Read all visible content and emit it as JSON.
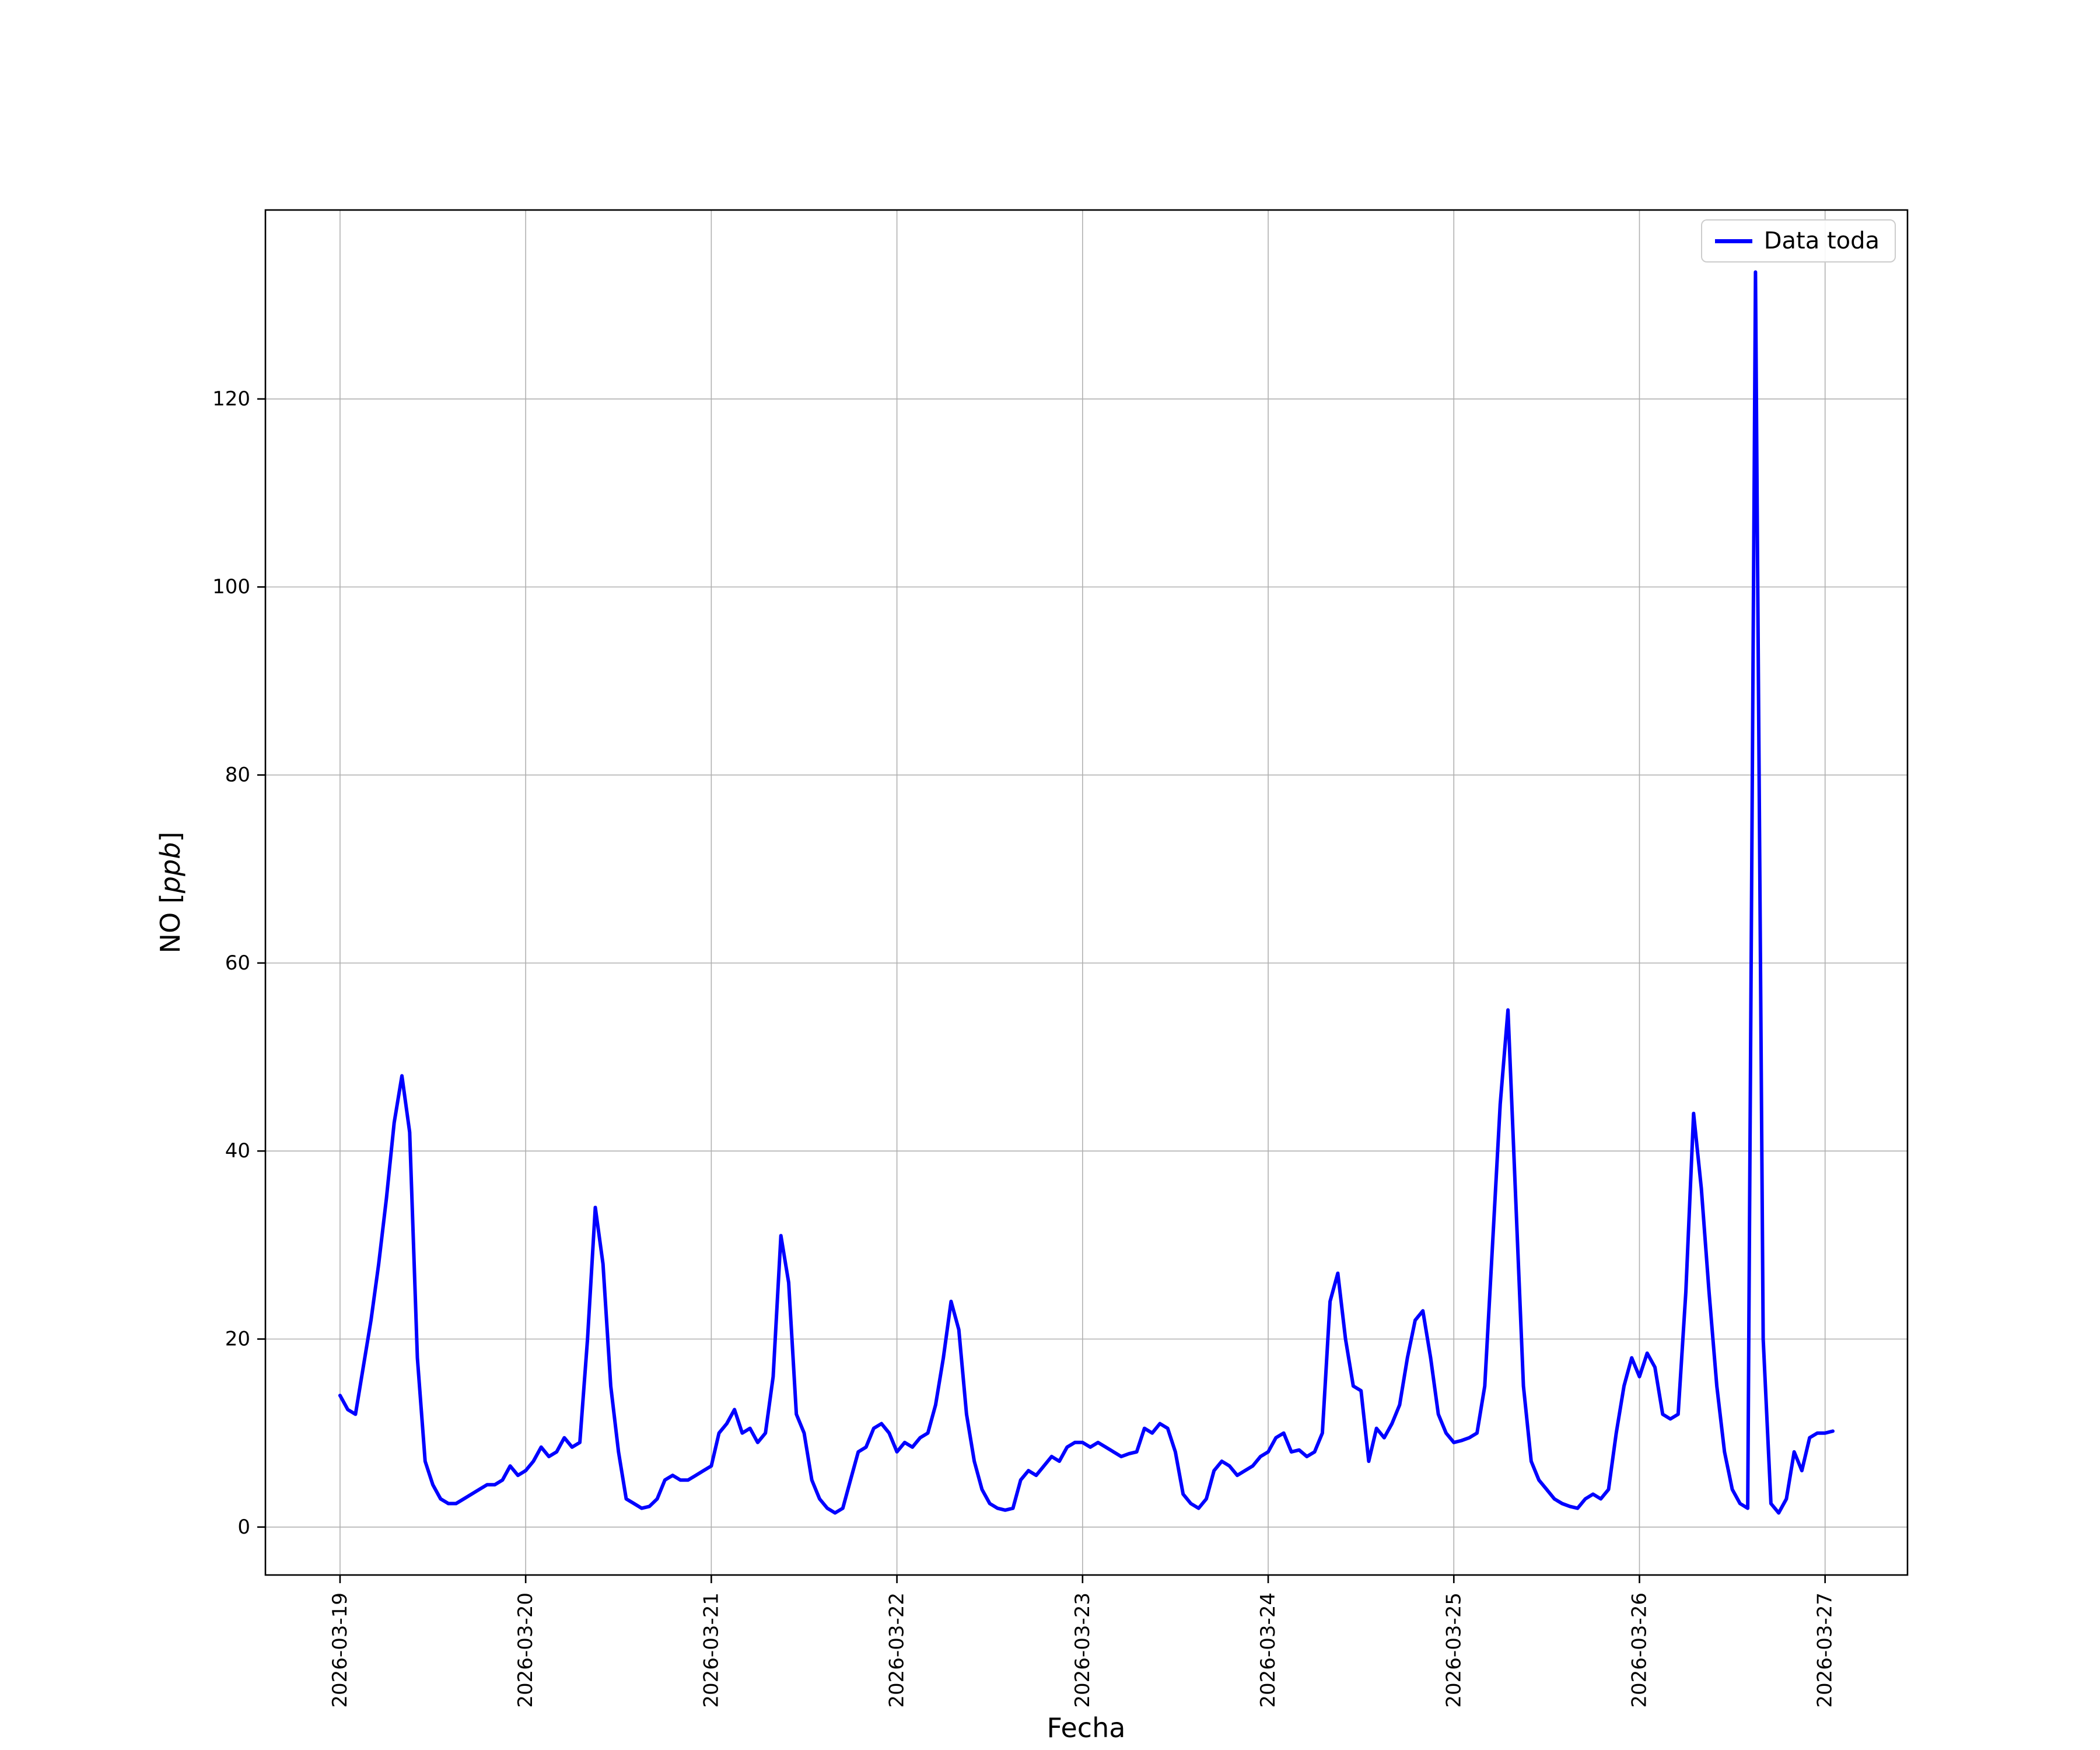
{
  "chart_data": {
    "type": "line",
    "title": "",
    "xlabel": "Fecha",
    "ylabel": "NO [ppb]",
    "ylabel_parts": {
      "prefix": "NO [",
      "italic": "ppb",
      "suffix": "]"
    },
    "legend": {
      "label": "Data toda",
      "position": "upper-right"
    },
    "grid": true,
    "background": "#ffffff",
    "grid_color": "#b0b0b0",
    "x_unit": "days since 2026-03-19 00:00 (hourly samples)",
    "x_start": 0,
    "x_step_days": 0.0416667,
    "x_tick_positions": [
      0,
      1,
      2,
      3,
      4,
      5,
      6,
      7,
      8
    ],
    "x_tick_labels": [
      "2026-03-19",
      "2026-03-20",
      "2026-03-21",
      "2026-03-22",
      "2026-03-23",
      "2026-03-24",
      "2026-03-25",
      "2026-03-26",
      "2026-03-27"
    ],
    "y_ticks": [
      0,
      20,
      40,
      60,
      80,
      100,
      120
    ],
    "xlim": [
      -0.402,
      8.444
    ],
    "ylim": [
      -5.1,
      140.1
    ],
    "series": [
      {
        "name": "Data toda",
        "color": "#0000ff",
        "y_values": [
          14,
          12.5,
          12,
          17,
          22,
          28,
          35,
          43,
          48,
          42,
          18,
          7,
          4.5,
          3,
          2.5,
          2.5,
          3,
          3.5,
          4,
          4.5,
          4.5,
          5,
          6.5,
          5.5,
          6,
          7,
          8.5,
          7.5,
          8,
          9.5,
          8.5,
          9,
          20,
          34,
          28,
          15,
          8,
          3,
          2.5,
          2,
          2.2,
          3,
          5,
          5.5,
          5,
          5,
          5.5,
          6,
          6.5,
          10,
          11,
          12.5,
          10,
          10.5,
          9,
          10,
          16,
          31,
          26,
          12,
          10,
          5,
          3,
          2,
          1.5,
          2,
          5,
          8,
          8.5,
          10.5,
          11,
          10,
          8,
          9,
          8.5,
          9.5,
          10,
          13,
          18,
          24,
          21,
          12,
          7,
          4,
          2.5,
          2,
          1.8,
          2,
          5,
          6,
          5.5,
          6.5,
          7.5,
          7,
          8.5,
          9,
          9,
          8.5,
          9,
          8.5,
          8,
          7.5,
          7.8,
          8,
          10.5,
          10,
          11,
          10.5,
          8,
          3.5,
          2.5,
          2,
          3,
          6,
          7,
          6.5,
          5.5,
          6,
          6.5,
          7.5,
          8,
          9.5,
          10,
          8,
          8.2,
          7.5,
          8,
          10,
          24,
          27,
          20,
          15,
          14.5,
          7,
          10.5,
          9.5,
          11,
          13,
          18,
          22,
          23,
          18,
          12,
          10,
          9,
          9.2,
          9.5,
          10,
          15,
          30,
          45,
          55,
          35,
          15,
          7,
          5,
          4,
          3,
          2.5,
          2.2,
          2,
          3,
          3.5,
          3,
          4,
          10,
          15,
          18,
          16,
          18.5,
          17,
          12,
          11.5,
          12,
          25,
          44,
          36,
          25,
          15,
          8,
          4,
          2.5,
          2,
          133.5,
          20,
          2.5,
          1.5,
          3,
          8,
          6,
          9.5,
          10,
          10,
          10.2
        ]
      }
    ]
  }
}
